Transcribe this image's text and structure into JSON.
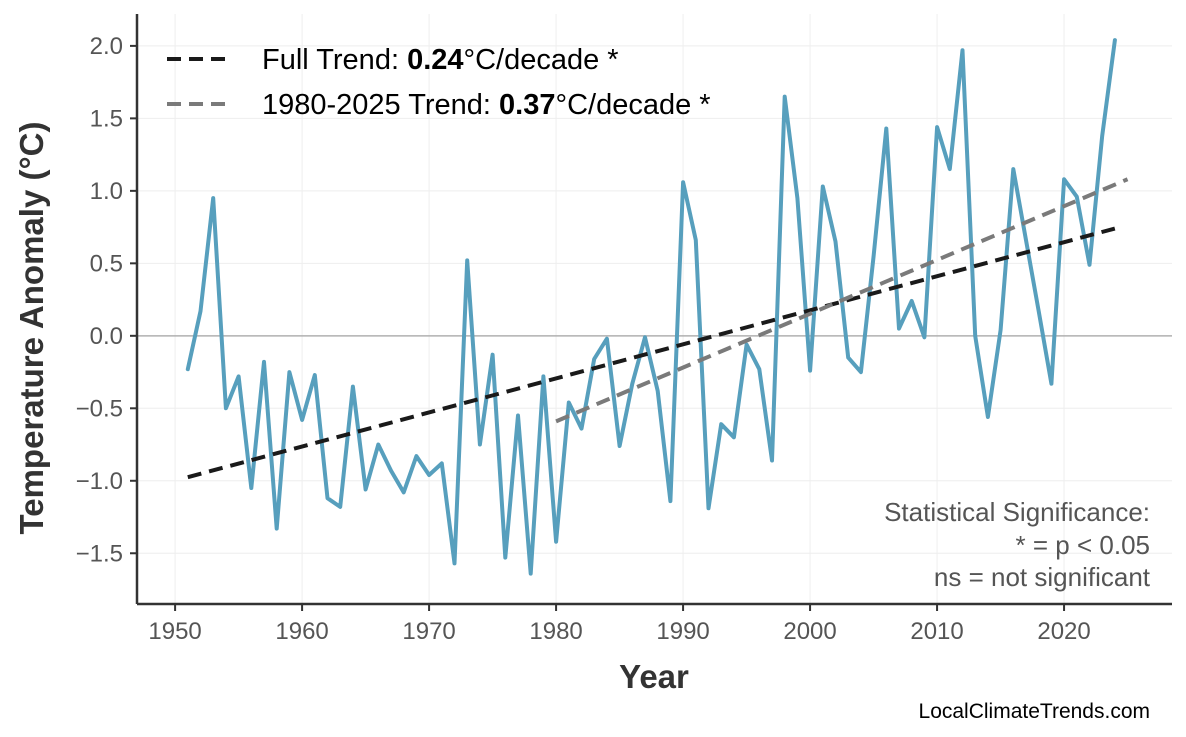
{
  "chart_data": {
    "type": "line",
    "xlabel": "Year",
    "ylabel": "Temperature Anomaly (°C)",
    "xlim": [
      1947,
      2028.5
    ],
    "ylim": [
      -1.85,
      2.22
    ],
    "xticks": [
      1950,
      1960,
      1970,
      1980,
      1990,
      2000,
      2010,
      2020
    ],
    "yticks": [
      -1.5,
      -1.0,
      -0.5,
      0.0,
      0.5,
      1.0,
      1.5,
      2.0
    ],
    "ytick_labels": [
      "−1.5",
      "−1.0",
      "−0.5",
      "0.0",
      "0.5",
      "1.0",
      "1.5",
      "2.0"
    ],
    "grid": true,
    "legend_position": "top-left",
    "colors": {
      "series": "#579fbd",
      "full_trend": "#1a1a1a",
      "recent_trend": "#7a7a7a",
      "zero_line": "#b0b0b0",
      "grid": "#eeeeee",
      "axis": "#333333"
    },
    "series": [
      {
        "x": [
          1951,
          1952,
          1953,
          1954,
          1955,
          1956,
          1957,
          1958,
          1959,
          1960,
          1961,
          1962,
          1963,
          1964,
          1965,
          1966,
          1967,
          1968,
          1969,
          1970,
          1971,
          1972,
          1973,
          1974,
          1975,
          1976,
          1977,
          1978,
          1979,
          1980,
          1981,
          1982,
          1983,
          1984,
          1985,
          1986,
          1987,
          1988,
          1989,
          1990,
          1991,
          1992,
          1993,
          1994,
          1995,
          1996,
          1997,
          1998,
          1999,
          2000,
          2001,
          2002,
          2003,
          2004,
          2005,
          2006,
          2007,
          2008,
          2009,
          2010,
          2011,
          2012,
          2013,
          2014,
          2015,
          2016,
          2017,
          2018,
          2019,
          2020,
          2021,
          2022,
          2023,
          2024
        ],
        "values": [
          -0.23,
          0.17,
          0.95,
          -0.5,
          -0.28,
          -1.05,
          -0.18,
          -1.33,
          -0.25,
          -0.58,
          -0.27,
          -1.12,
          -1.18,
          -0.35,
          -1.06,
          -0.75,
          -0.93,
          -1.08,
          -0.83,
          -0.96,
          -0.88,
          -1.57,
          0.52,
          -0.75,
          -0.13,
          -1.53,
          -0.55,
          -1.64,
          -0.28,
          -1.42,
          -0.46,
          -0.64,
          -0.16,
          -0.02,
          -0.76,
          -0.33,
          -0.01,
          -0.38,
          -1.14,
          1.06,
          0.66,
          -1.19,
          -0.61,
          -0.7,
          -0.06,
          -0.23,
          -0.86,
          1.65,
          0.95,
          -0.24,
          1.03,
          0.65,
          -0.15,
          -0.25,
          0.55,
          1.43,
          0.05,
          0.24,
          -0.01,
          1.44,
          1.15,
          1.97,
          0.0,
          -0.56,
          0.04,
          1.15,
          0.66,
          0.17,
          -0.33,
          1.08,
          0.96,
          0.49,
          1.38,
          2.04
        ]
      }
    ],
    "trends": [
      {
        "label": "Full Trend: ",
        "rate": "0.24",
        "unit": "°C/decade *",
        "x": [
          1951,
          2024
        ],
        "y": [
          -0.975,
          0.74
        ]
      },
      {
        "label": "1980-2025 Trend: ",
        "rate": "0.37",
        "unit": "°C/decade *",
        "x": [
          1980,
          2025
        ],
        "y": [
          -0.59,
          1.08
        ]
      }
    ],
    "annotation": [
      "Statistical Significance:",
      "* = p < 0.05",
      "ns = not significant"
    ]
  },
  "credit": "LocalClimateTrends.com"
}
